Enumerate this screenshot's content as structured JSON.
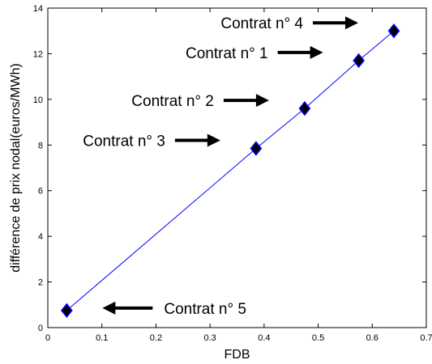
{
  "chart_data": {
    "type": "scatter",
    "title": "",
    "xlabel": "FDB",
    "ylabel": "différence de prix nodal(euros/MWh)",
    "xlim": [
      0,
      0.7
    ],
    "ylim": [
      0,
      14
    ],
    "xticks": [
      0,
      0.1,
      0.2,
      0.3,
      0.4,
      0.5,
      0.6,
      0.7
    ],
    "yticks": [
      0,
      2,
      4,
      6,
      8,
      10,
      12,
      14
    ],
    "x_tick_labels": [
      "0",
      "0.1",
      "0.2",
      "0.3",
      "0.4",
      "0.5",
      "0.6",
      "0.7"
    ],
    "y_tick_labels": [
      "0",
      "2",
      "4",
      "6",
      "8",
      "10",
      "12",
      "14"
    ],
    "grid": false,
    "line_color": "#0000ff",
    "marker_color": "#000000",
    "series": [
      {
        "points": [
          {
            "x": 0.035,
            "y": 0.75,
            "label": "Contrat n° 5"
          },
          {
            "x": 0.385,
            "y": 7.85,
            "label": "Contrat n° 3"
          },
          {
            "x": 0.475,
            "y": 9.6,
            "label": "Contrat n° 2"
          },
          {
            "x": 0.575,
            "y": 11.7,
            "label": "Contrat n° 1"
          },
          {
            "x": 0.64,
            "y": 13.0,
            "label": "Contrat n° 4"
          }
        ]
      }
    ],
    "annotations": [
      {
        "text": "Contrat n° 4",
        "point": 4,
        "side": "left"
      },
      {
        "text": "Contrat n° 1",
        "point": 3,
        "side": "left"
      },
      {
        "text": "Contrat n° 2",
        "point": 2,
        "side": "left"
      },
      {
        "text": "Contrat n° 3",
        "point": 1,
        "side": "left"
      },
      {
        "text": "Contrat n° 5",
        "point": 0,
        "side": "right"
      }
    ]
  }
}
